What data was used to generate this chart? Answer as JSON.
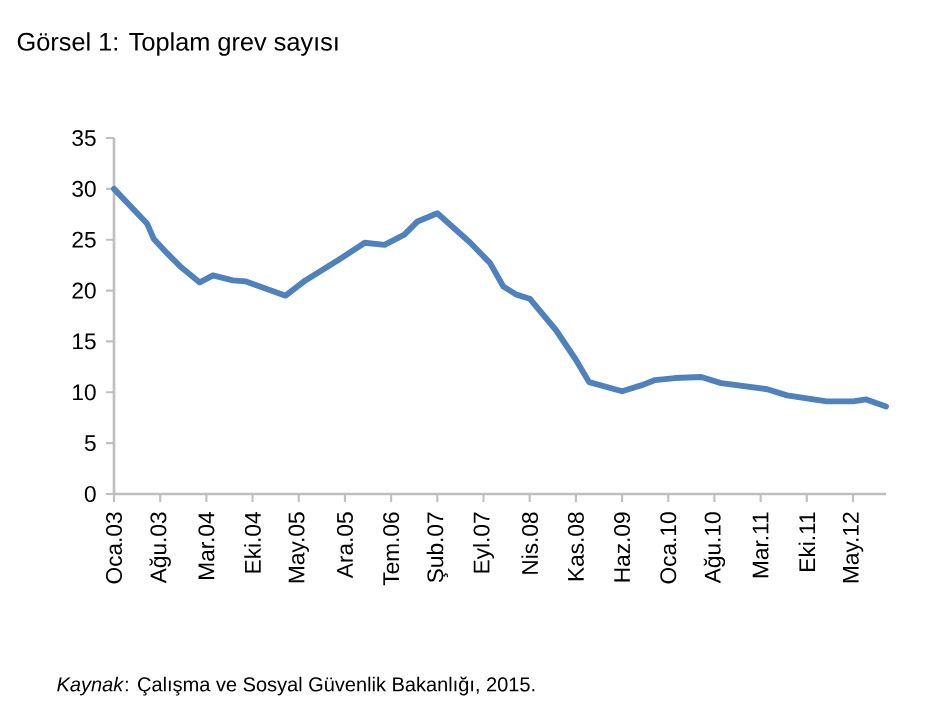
{
  "chart_data": {
    "type": "line",
    "title": "Görsel 1: Toplam grev sayısı",
    "annotations": [
      "*Kaynak*: Çalışma ve Sosyal Güvenlik Bakanlığı, 2015."
    ],
    "x": [
      "2003-01",
      "2003-06",
      "2003-07",
      "2003-09",
      "2003-11",
      "2004-02",
      "2004-04",
      "2004-07",
      "2004-09",
      "2005-03",
      "2005-06",
      "2005-11",
      "2006-03",
      "2006-06",
      "2006-09",
      "2006-11",
      "2007-02",
      "2007-07",
      "2007-10",
      "2007-12",
      "2008-02",
      "2008-04",
      "2008-08",
      "2008-11",
      "2009-01",
      "2009-06",
      "2009-09",
      "2009-11",
      "2010-02",
      "2010-06",
      "2010-09",
      "2011-04",
      "2011-07",
      "2012-01",
      "2012-05",
      "2012-07",
      "2012-10"
    ],
    "values": [
      30.0,
      26.6,
      25.1,
      23.7,
      22.4,
      20.8,
      21.5,
      21.0,
      20.9,
      19.5,
      21.0,
      23.0,
      24.7,
      24.5,
      25.5,
      26.8,
      27.6,
      24.7,
      22.7,
      20.4,
      19.6,
      19.2,
      16.1,
      13.2,
      11.0,
      10.1,
      10.7,
      11.2,
      11.4,
      11.5,
      10.9,
      10.3,
      9.7,
      9.1,
      9.1,
      9.3,
      8.6
    ],
    "color": "#4f81bd",
    "xlim": [
      "2003-01",
      "2012-10"
    ],
    "ylim": [
      0,
      35
    ],
    "xticks": [
      {
        "value": "2003-01",
        "label": "Oca.03"
      },
      {
        "value": "2003-08",
        "label": "Ağu.03"
      },
      {
        "value": "2004-03",
        "label": "Mar.04"
      },
      {
        "value": "2004-10",
        "label": "Eki.04"
      },
      {
        "value": "2005-05",
        "label": "May.05"
      },
      {
        "value": "2005-12",
        "label": "Ara.05"
      },
      {
        "value": "2006-07",
        "label": "Tem.06"
      },
      {
        "value": "2007-02",
        "label": "Şub.07"
      },
      {
        "value": "2007-09",
        "label": "Eyl.07"
      },
      {
        "value": "2008-04",
        "label": "Nis.08"
      },
      {
        "value": "2008-11",
        "label": "Kas.08"
      },
      {
        "value": "2009-06",
        "label": "Haz.09"
      },
      {
        "value": "2010-01",
        "label": "Oca.10"
      },
      {
        "value": "2010-08",
        "label": "Ağu.10"
      },
      {
        "value": "2011-03",
        "label": "Mar.11"
      },
      {
        "value": "2011-10",
        "label": "Eki.11"
      },
      {
        "value": "2012-05",
        "label": "May.12"
      }
    ],
    "yticks": [
      0,
      5,
      10,
      15,
      20,
      25,
      30,
      35
    ]
  }
}
